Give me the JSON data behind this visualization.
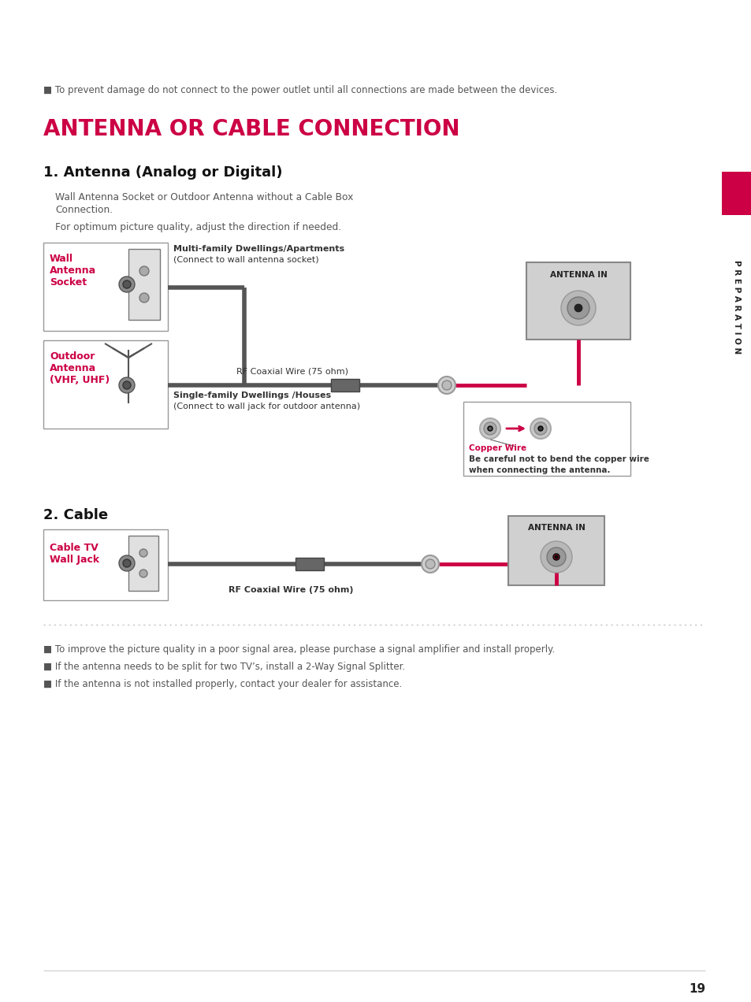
{
  "page_bg": "#ffffff",
  "crimson": "#cc0044",
  "dark_gray": "#555555",
  "mid_gray": "#888888",
  "light_gray": "#cccccc",
  "box_gray": "#c8c8c8",
  "text_color": "#333333",
  "sidebar_color": "#cc0044",
  "title": "ANTENNA OR CABLE CONNECTION",
  "warning_note": "■ To prevent damage do not connect to the power outlet until all connections are made between the devices.",
  "section1_title": "1. Antenna (Analog or Digital)",
  "section1_desc1": "Wall Antenna Socket or Outdoor Antenna without a Cable Box",
  "section1_desc2": "Connection.",
  "section1_desc3": "For optimum picture quality, adjust the direction if needed.",
  "section2_title": "2. Cable",
  "footer_notes": [
    "■ To improve the picture quality in a poor signal area, please purchase a signal amplifier and install properly.",
    "■ If the antenna needs to be split for two TV’s, install a 2-Way Signal Splitter.",
    "■ If the antenna is not installed properly, contact your dealer for assistance."
  ],
  "page_number": "19",
  "preparation_text": "P R E P A R A T I O N"
}
